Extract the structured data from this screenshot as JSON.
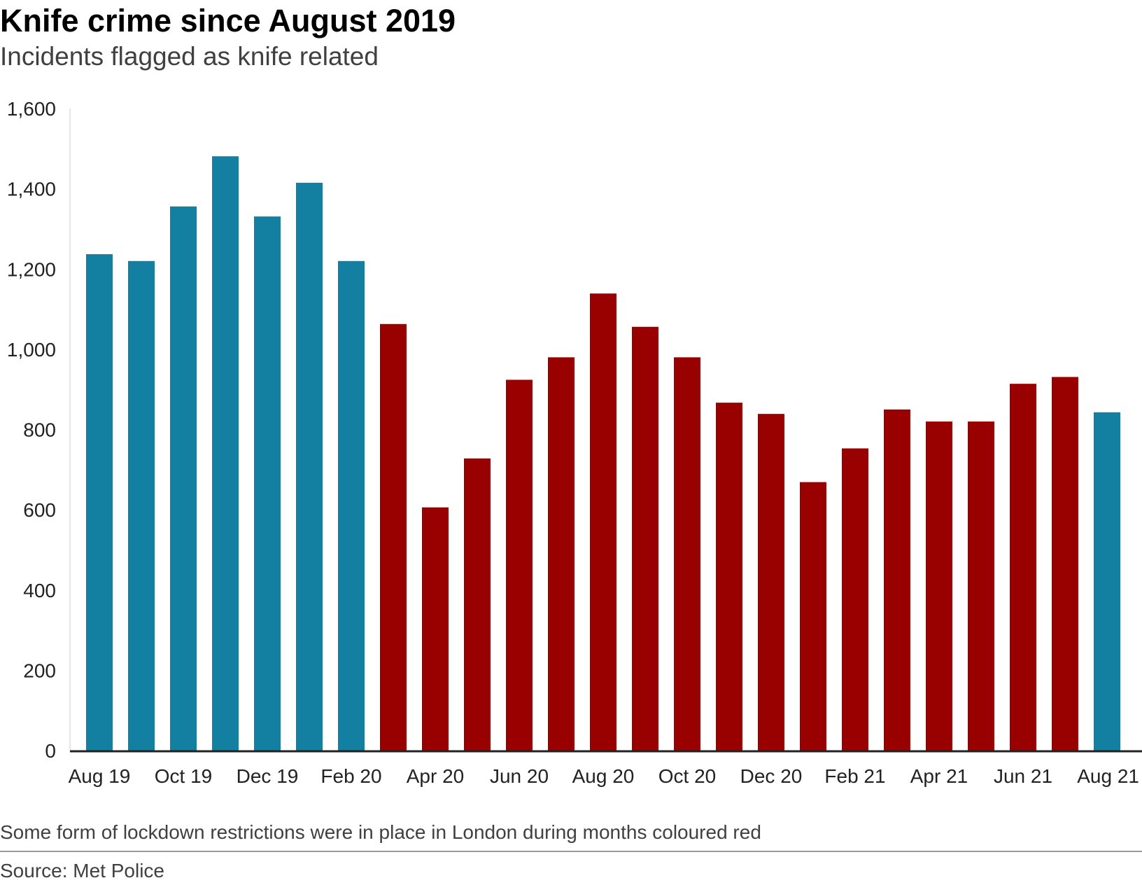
{
  "title": "Knife crime since August 2019",
  "subtitle": "Incidents flagged as knife related",
  "footnote": "Some form of lockdown restrictions were in place in London during months coloured red",
  "source": "Source: Met Police",
  "colors": {
    "normal": "#1380a1",
    "lockdown": "#990000",
    "axis": "#222222",
    "rule": "#999999"
  },
  "chart_data": {
    "type": "bar",
    "title": "Knife crime since August 2019",
    "subtitle": "Incidents flagged as knife related",
    "xlabel": "",
    "ylabel": "",
    "ylim": [
      0,
      1600
    ],
    "yticks": [
      0,
      200,
      400,
      600,
      800,
      1000,
      1200,
      1400,
      1600
    ],
    "ytick_labels": [
      "0",
      "200",
      "400",
      "600",
      "800",
      "1,000",
      "1,200",
      "1,400",
      "1,600"
    ],
    "grid": false,
    "legend": "none",
    "categories": [
      "Aug 19",
      "Sep 19",
      "Oct 19",
      "Nov 19",
      "Dec 19",
      "Jan 20",
      "Feb 20",
      "Mar 20",
      "Apr 20",
      "May 20",
      "Jun 20",
      "Jul 20",
      "Aug 20",
      "Sep 20",
      "Oct 20",
      "Nov 20",
      "Dec 20",
      "Jan 21",
      "Feb 21",
      "Mar 21",
      "Apr 21",
      "May 21",
      "Jun 21",
      "Jul 21",
      "Aug 21"
    ],
    "xtick_labels": [
      "Aug 19",
      "Oct 19",
      "Dec 19",
      "Feb 20",
      "Apr 20",
      "Jun 20",
      "Aug 20",
      "Oct 20",
      "Dec 20",
      "Feb 21",
      "Apr 21",
      "Jun 21",
      "Aug 21"
    ],
    "values": [
      1237,
      1220,
      1356,
      1481,
      1331,
      1415,
      1220,
      1063,
      606,
      728,
      924,
      980,
      1139,
      1056,
      980,
      867,
      839,
      669,
      753,
      850,
      820,
      820,
      914,
      931,
      843
    ],
    "lockdown": [
      false,
      false,
      false,
      false,
      false,
      false,
      false,
      true,
      true,
      true,
      true,
      true,
      true,
      true,
      true,
      true,
      true,
      true,
      true,
      true,
      true,
      true,
      true,
      true,
      false
    ]
  }
}
